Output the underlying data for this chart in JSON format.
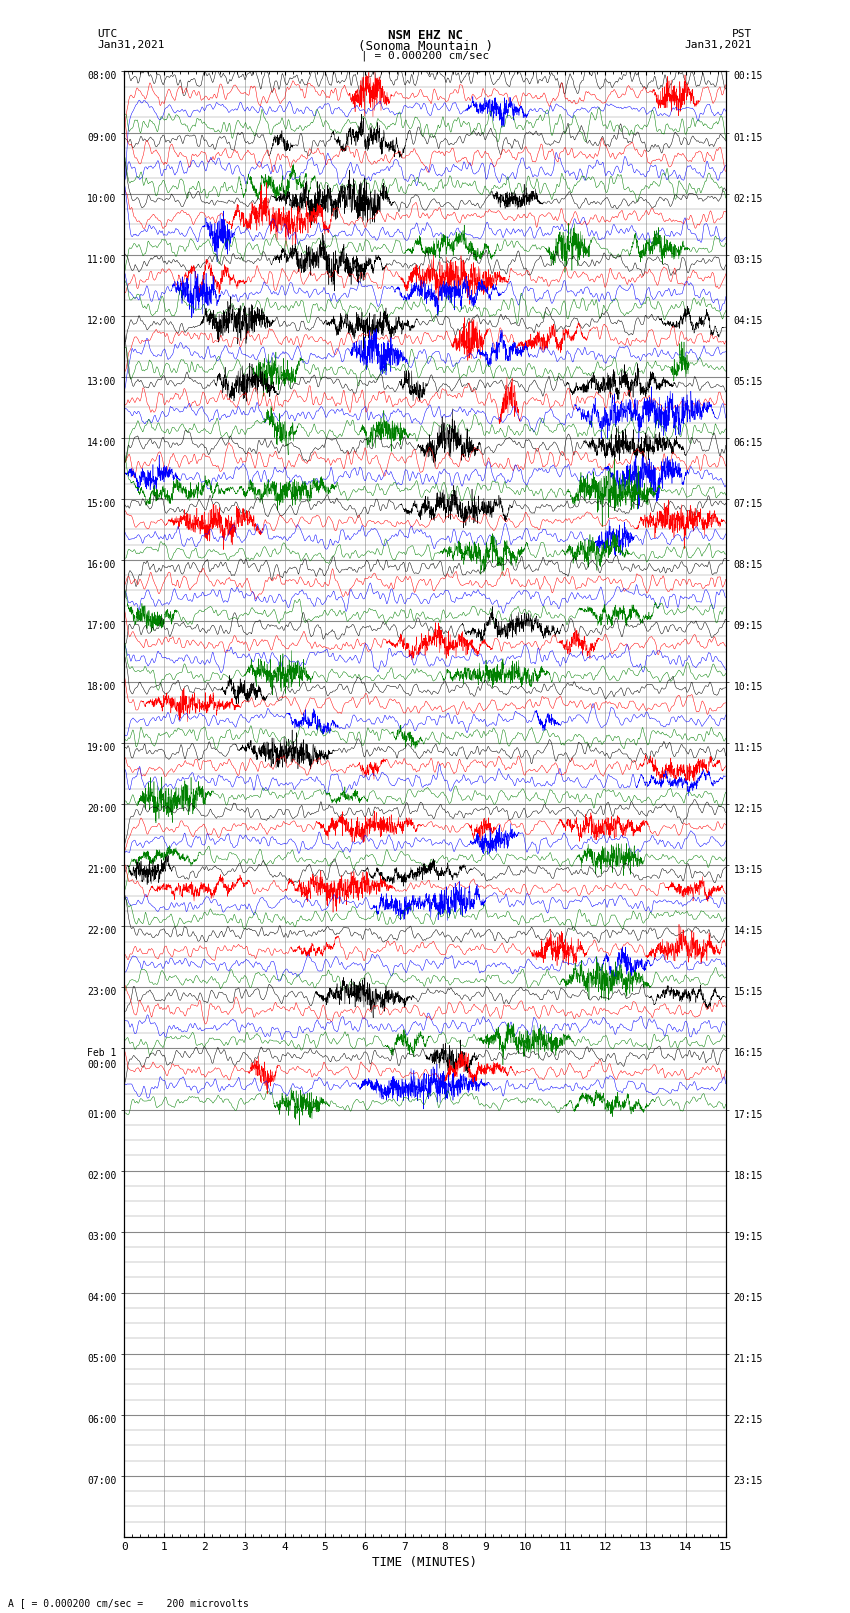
{
  "title_line1": "NSM EHZ NC",
  "title_line2": "(Sonoma Mountain )",
  "scale_text": "| = 0.000200 cm/sec",
  "left_header": "UTC",
  "left_date": "Jan31,2021",
  "right_header": "PST",
  "right_date": "Jan31,2021",
  "bottom_label": "TIME (MINUTES)",
  "footnote": "A [ = 0.000200 cm/sec =    200 microvolts",
  "xlim": [
    0,
    15
  ],
  "xticks": [
    0,
    1,
    2,
    3,
    4,
    5,
    6,
    7,
    8,
    9,
    10,
    11,
    12,
    13,
    14,
    15
  ],
  "n_rows": 96,
  "n_signal_rows": 68,
  "colors_cycle": [
    "black",
    "red",
    "blue",
    "green"
  ],
  "fig_width": 8.5,
  "fig_height": 16.13,
  "dpi": 100,
  "background_color": "white",
  "grid_color": "#888888",
  "trace_linewidth": 0.35,
  "utc_labels": [
    "08:00",
    "09:00",
    "10:00",
    "11:00",
    "12:00",
    "13:00",
    "14:00",
    "15:00",
    "16:00",
    "17:00",
    "18:00",
    "19:00",
    "20:00",
    "21:00",
    "22:00",
    "23:00",
    "Feb 1\n00:00",
    "01:00",
    "02:00",
    "03:00",
    "04:00",
    "05:00",
    "06:00",
    "07:00"
  ],
  "pst_labels": [
    "00:15",
    "01:15",
    "02:15",
    "03:15",
    "04:15",
    "05:15",
    "06:15",
    "07:15",
    "08:15",
    "09:15",
    "10:15",
    "11:15",
    "12:15",
    "13:15",
    "14:15",
    "15:15",
    "16:15",
    "17:15",
    "18:15",
    "19:15",
    "20:15",
    "21:15",
    "22:15",
    "23:15"
  ],
  "label_row_indices": [
    0,
    4,
    8,
    12,
    16,
    20,
    24,
    28,
    32,
    36,
    40,
    44,
    48,
    52,
    56,
    60,
    64,
    68,
    72,
    76,
    80,
    84,
    88,
    92
  ]
}
